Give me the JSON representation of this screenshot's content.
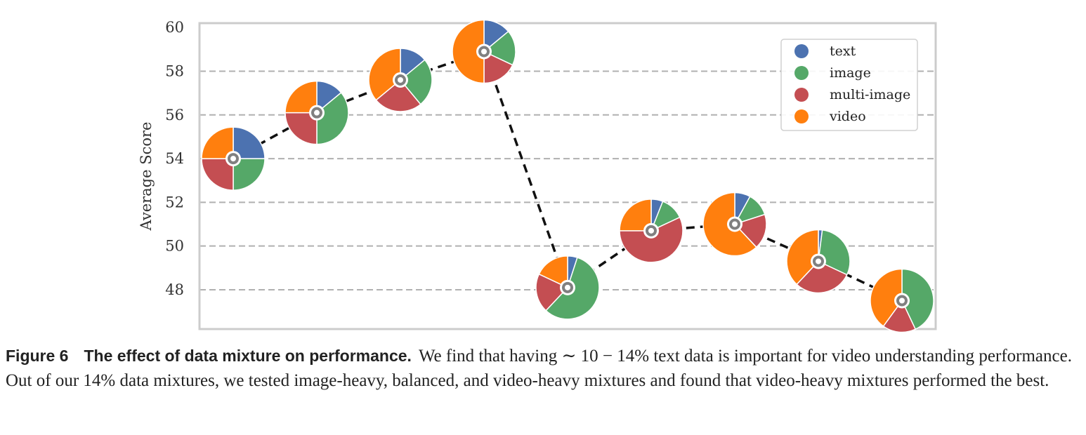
{
  "chart_data": {
    "type": "scatter",
    "marker": "pie",
    "ylabel": "Average Score",
    "xlabel": "",
    "ylim": [
      46.2,
      60.2
    ],
    "yticks": [
      48,
      50,
      52,
      54,
      56,
      58,
      60
    ],
    "grid": "horizontal dashed",
    "legend_position": "top-right",
    "line_style": "dashed black",
    "categories": [
      "text",
      "image",
      "multi-image",
      "video"
    ],
    "colors": {
      "text": "#4C72B0",
      "image": "#55A868",
      "multi-image": "#C44E52",
      "video": "#FF7F0E"
    },
    "points": [
      {
        "score": 54.0,
        "mix": {
          "text": 25,
          "image": 25,
          "multi-image": 25,
          "video": 25
        }
      },
      {
        "score": 56.1,
        "mix": {
          "text": 14,
          "image": 36,
          "multi-image": 25,
          "video": 25
        }
      },
      {
        "score": 57.6,
        "mix": {
          "text": 14,
          "image": 25,
          "multi-image": 25,
          "video": 36
        }
      },
      {
        "score": 58.9,
        "mix": {
          "text": 14,
          "image": 18,
          "multi-image": 18,
          "video": 50
        }
      },
      {
        "score": 48.1,
        "mix": {
          "text": 5,
          "image": 57,
          "multi-image": 20,
          "video": 18
        }
      },
      {
        "score": 50.7,
        "mix": {
          "text": 6,
          "image": 12,
          "multi-image": 57,
          "video": 25
        }
      },
      {
        "score": 51.0,
        "mix": {
          "text": 8,
          "image": 12,
          "multi-image": 18,
          "video": 62
        }
      },
      {
        "score": 49.3,
        "mix": {
          "text": 2,
          "image": 30,
          "multi-image": 30,
          "video": 38
        }
      },
      {
        "score": 47.5,
        "mix": {
          "text": 0,
          "image": 43,
          "multi-image": 17,
          "video": 40
        }
      }
    ]
  },
  "caption": {
    "figure_number": "Figure 6",
    "title": "The effect of data mixture on performance.",
    "text": "We find that having ∼ 10 − 14% text data is important for video understanding performance. Out of our 14% data mixtures, we tested image-heavy, balanced, and video-heavy mixtures and found that video-heavy mixtures performed the best."
  }
}
